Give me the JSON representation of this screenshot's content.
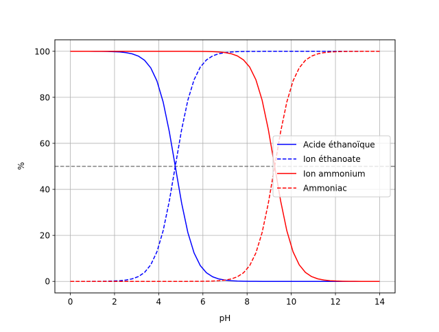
{
  "chart_data": {
    "type": "line",
    "title": "",
    "xlabel": "pH",
    "ylabel": "%",
    "xlim": [
      -0.7,
      14.7
    ],
    "ylim": [
      -5,
      105
    ],
    "xticks": [
      0,
      2,
      4,
      6,
      8,
      10,
      12,
      14
    ],
    "yticks": [
      0,
      20,
      40,
      60,
      80,
      100
    ],
    "xtick_labels": [
      "0",
      "2",
      "4",
      "6",
      "8",
      "10",
      "12",
      "14"
    ],
    "ytick_labels": [
      "0",
      "20",
      "40",
      "60",
      "80",
      "100"
    ],
    "grid": true,
    "legend_position": "center-right",
    "reference_line": {
      "y": 50,
      "color": "#808080",
      "style": "dashed"
    },
    "pka": [
      4.75,
      9.25
    ],
    "series": [
      {
        "name": "Acide éthanoïque",
        "color": "#0000ff",
        "style": "solid"
      },
      {
        "name": "Ion éthanoate",
        "color": "#0000ff",
        "style": "dashed"
      },
      {
        "name": "Ion ammonium",
        "color": "#ff0000",
        "style": "solid"
      },
      {
        "name": "Ammoniac",
        "color": "#ff0000",
        "style": "dashed"
      }
    ]
  }
}
